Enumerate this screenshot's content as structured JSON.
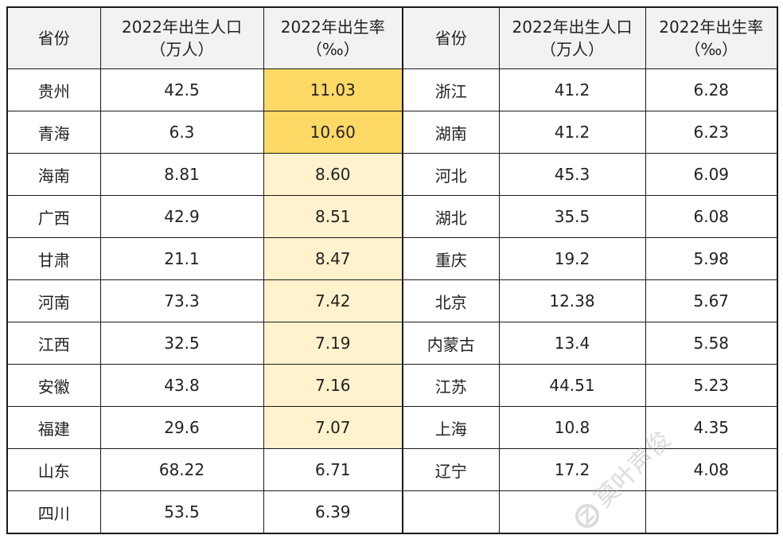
{
  "headers": {
    "province": "省份",
    "population_line1": "2022年出生人口",
    "population_line2": "（万人）",
    "rate_line1": "2022年出生率",
    "rate_line2": "（‰）"
  },
  "rows": [
    {
      "l_prov": "贵州",
      "l_pop": "42.5",
      "l_rate": "11.03",
      "l_hl": "strong",
      "r_prov": "浙江",
      "r_pop": "41.2",
      "r_rate": "6.28"
    },
    {
      "l_prov": "青海",
      "l_pop": "6.3",
      "l_rate": "10.60",
      "l_hl": "strong",
      "r_prov": "湖南",
      "r_pop": "41.2",
      "r_rate": "6.23"
    },
    {
      "l_prov": "海南",
      "l_pop": "8.81",
      "l_rate": "8.60",
      "l_hl": "light",
      "r_prov": "河北",
      "r_pop": "45.3",
      "r_rate": "6.09"
    },
    {
      "l_prov": "广西",
      "l_pop": "42.9",
      "l_rate": "8.51",
      "l_hl": "light",
      "r_prov": "湖北",
      "r_pop": "35.5",
      "r_rate": "6.08"
    },
    {
      "l_prov": "甘肃",
      "l_pop": "21.1",
      "l_rate": "8.47",
      "l_hl": "light",
      "r_prov": "重庆",
      "r_pop": "19.2",
      "r_rate": "5.98"
    },
    {
      "l_prov": "河南",
      "l_pop": "73.3",
      "l_rate": "7.42",
      "l_hl": "light",
      "r_prov": "北京",
      "r_pop": "12.38",
      "r_rate": "5.67"
    },
    {
      "l_prov": "江西",
      "l_pop": "32.5",
      "l_rate": "7.19",
      "l_hl": "light",
      "r_prov": "内蒙古",
      "r_pop": "13.4",
      "r_rate": "5.58"
    },
    {
      "l_prov": "安徽",
      "l_pop": "43.8",
      "l_rate": "7.16",
      "l_hl": "light",
      "r_prov": "江苏",
      "r_pop": "44.51",
      "r_rate": "5.23"
    },
    {
      "l_prov": "福建",
      "l_pop": "29.6",
      "l_rate": "7.07",
      "l_hl": "light",
      "r_prov": "上海",
      "r_pop": "10.8",
      "r_rate": "4.35"
    },
    {
      "l_prov": "山东",
      "l_pop": "68.22",
      "l_rate": "6.71",
      "l_hl": "none",
      "r_prov": "辽宁",
      "r_pop": "17.2",
      "r_rate": "4.08"
    },
    {
      "l_prov": "四川",
      "l_pop": "53.5",
      "l_rate": "6.39",
      "l_hl": "none",
      "r_prov": "",
      "r_pop": "",
      "r_rate": ""
    }
  ],
  "colors": {
    "highlight_strong": "#ffd966",
    "highlight_light": "#fff2cc",
    "header_bg": "#f2f2f2"
  },
  "watermark": {
    "text": "莫叶声俊",
    "icon": "z-logo-icon"
  }
}
